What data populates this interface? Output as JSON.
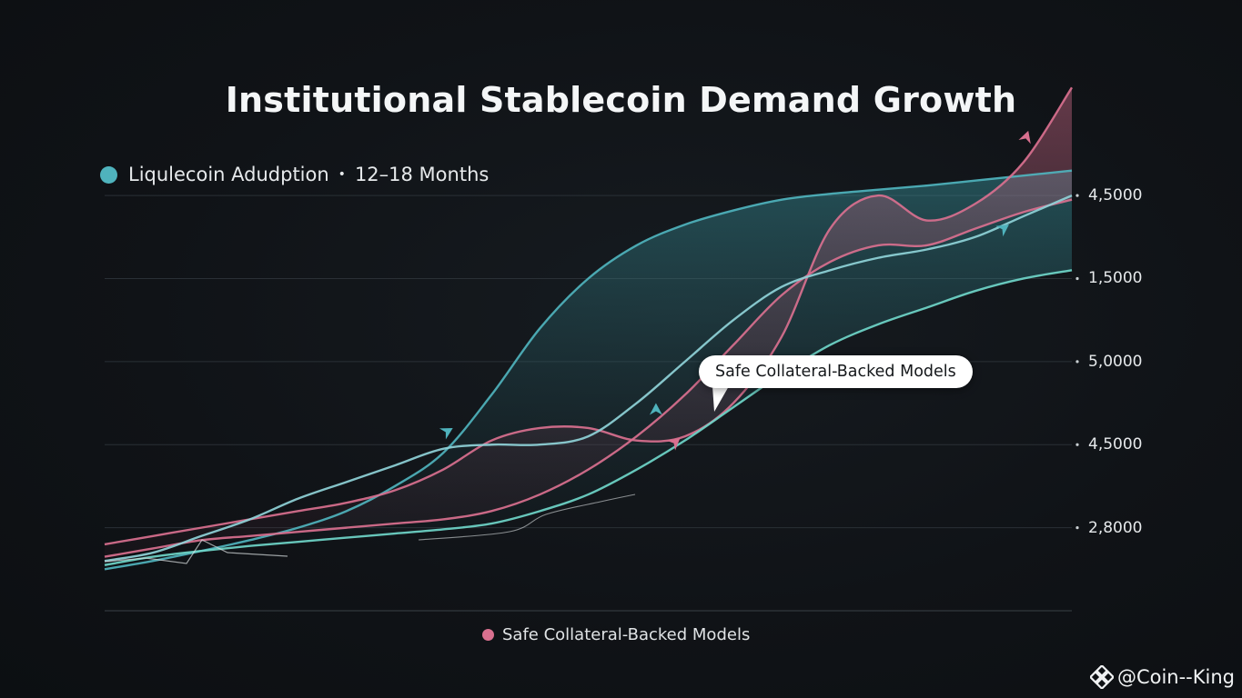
{
  "chart_data": {
    "type": "area",
    "title": "Institutional Stablecoin Demand Growth",
    "legend_top": {
      "series_label": "Liqulecoin Adudption",
      "separator": "•",
      "period": "12–18 Months",
      "color": "#4fb3bd"
    },
    "legend_bottom": {
      "series_label": "Safe Collateral-Backed Models",
      "color": "#d9708f"
    },
    "callout": "Safe Collateral-Backed Models",
    "y_tick_labels": [
      "4,5000",
      "1,5000",
      "5,0000",
      "4,5000",
      "2,8000"
    ],
    "y_tick_positions": [
      5,
      4,
      3,
      2,
      1
    ],
    "xlim": [
      0,
      100
    ],
    "ylim": [
      0,
      5.8
    ],
    "grid": true,
    "x": [
      0,
      5,
      10,
      15,
      20,
      25,
      30,
      35,
      40,
      45,
      50,
      55,
      60,
      65,
      70,
      75,
      80,
      85,
      90,
      95,
      100
    ],
    "series": [
      {
        "name": "Liqulecoin Adudption (upper band)",
        "color": "#4fb3bd",
        "values": [
          0.5,
          0.6,
          0.72,
          0.85,
          1.0,
          1.2,
          1.5,
          1.9,
          2.6,
          3.4,
          4.0,
          4.4,
          4.65,
          4.82,
          4.95,
          5.02,
          5.07,
          5.12,
          5.18,
          5.24,
          5.3
        ]
      },
      {
        "name": "Safe Collateral-Backed Models (peak)",
        "color": "#d9708f",
        "values": [
          0.8,
          0.9,
          1.0,
          1.1,
          1.2,
          1.3,
          1.45,
          1.7,
          2.05,
          2.2,
          2.2,
          2.05,
          2.1,
          2.5,
          3.3,
          4.6,
          5.0,
          4.7,
          4.9,
          5.4,
          6.3
        ]
      },
      {
        "name": "Safe Collateral-Backed Models (base)",
        "color": "#d9708f",
        "values": [
          0.65,
          0.75,
          0.85,
          0.9,
          0.95,
          1.0,
          1.05,
          1.1,
          1.2,
          1.4,
          1.7,
          2.1,
          2.6,
          3.2,
          3.8,
          4.2,
          4.4,
          4.4,
          4.6,
          4.8,
          4.95
        ]
      },
      {
        "name": "Liqulecoin Adudption (lower)",
        "color": "#6fd6c9",
        "values": [
          0.55,
          0.65,
          0.72,
          0.78,
          0.83,
          0.88,
          0.93,
          0.98,
          1.05,
          1.2,
          1.4,
          1.7,
          2.05,
          2.45,
          2.85,
          3.2,
          3.45,
          3.65,
          3.85,
          4.0,
          4.1
        ]
      },
      {
        "name": "Liqulecoin Adudption (mid)",
        "color": "#8fd3d8",
        "values": [
          0.6,
          0.7,
          0.9,
          1.1,
          1.35,
          1.55,
          1.75,
          1.95,
          2.0,
          2.0,
          2.1,
          2.5,
          3.0,
          3.5,
          3.9,
          4.1,
          4.25,
          4.35,
          4.5,
          4.75,
          5.0
        ]
      }
    ]
  },
  "watermark": {
    "at": "@",
    "handle": "Coin--King"
  }
}
